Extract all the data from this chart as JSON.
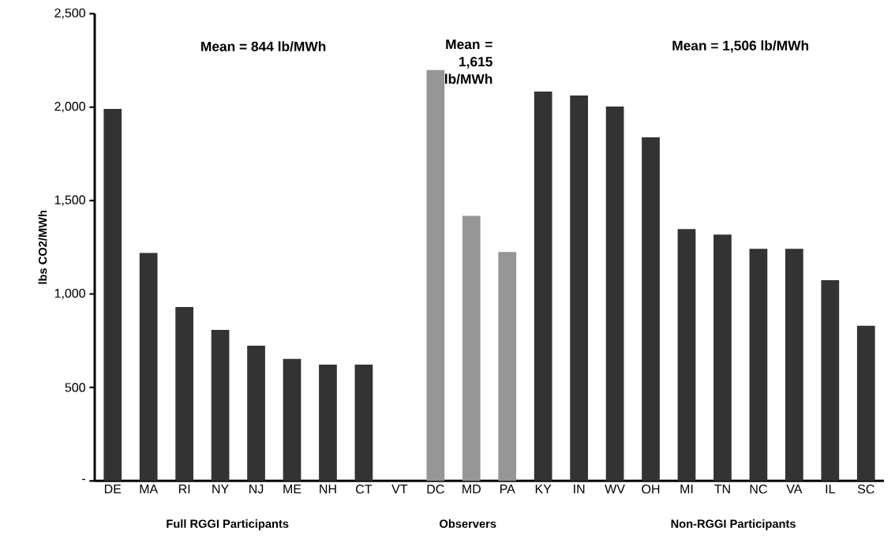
{
  "chart_data": {
    "type": "bar",
    "ylabel": "lbs CO2/MWh",
    "categories": [
      "DE",
      "MA",
      "RI",
      "NY",
      "NJ",
      "ME",
      "NH",
      "CT",
      "VT",
      "DC",
      "MD",
      "PA",
      "KY",
      "IN",
      "WV",
      "OH",
      "MI",
      "TN",
      "NC",
      "VA",
      "IL",
      "SC"
    ],
    "values": [
      1990,
      1220,
      930,
      808,
      723,
      653,
      622,
      622,
      0,
      2198,
      1418,
      1225,
      2083,
      2062,
      2003,
      1838,
      1347,
      1318,
      1242,
      1242,
      1074,
      830
    ],
    "colors": [
      "#333333",
      "#333333",
      "#333333",
      "#333333",
      "#333333",
      "#333333",
      "#333333",
      "#333333",
      "#333333",
      "#969696",
      "#969696",
      "#969696",
      "#333333",
      "#333333",
      "#333333",
      "#333333",
      "#333333",
      "#333333",
      "#333333",
      "#333333",
      "#333333",
      "#333333"
    ],
    "ylim": [
      0,
      2500
    ],
    "yticks": [
      {
        "value": 0,
        "label": "-"
      },
      {
        "value": 500,
        "label": "500"
      },
      {
        "value": 1000,
        "label": "1,000"
      },
      {
        "value": 1500,
        "label": "1,500"
      },
      {
        "value": 2000,
        "label": "2,000"
      },
      {
        "value": 2500,
        "label": "2,500"
      }
    ],
    "grid": false,
    "annotations": [
      "Mean = 844 lb/MWh",
      "Mean = 1,615 lb/MWh",
      "Mean = 1,506 lb/MWh",
      "Full RGGI Participants",
      "Observers",
      "Non-RGGI Participants"
    ]
  }
}
